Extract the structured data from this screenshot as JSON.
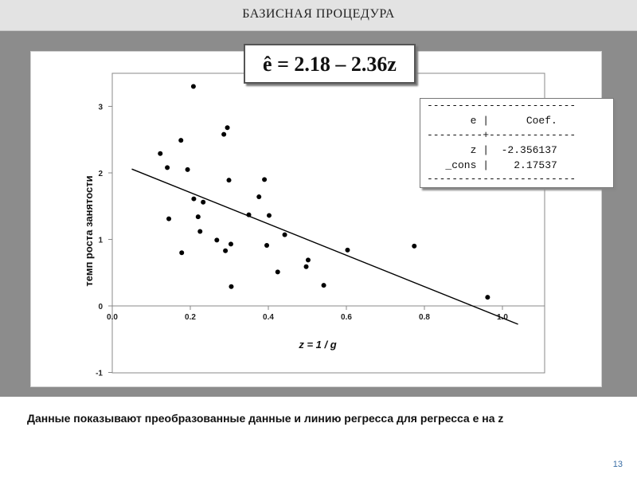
{
  "header": {
    "title": "БАЗИСНАЯ ПРОЦЕДУРА"
  },
  "equation": {
    "text": "ê = 2.18 – 2.36z"
  },
  "regression_table": {
    "lines": [
      "------------------------",
      "       e |      Coef.",
      "---------+--------------",
      "       z |  -2.356137",
      "   _cons |    2.17537",
      "------------------------"
    ]
  },
  "caption": {
    "text": "Данные показывают преобразованные данные и линию регресса для регресса e на z"
  },
  "page": {
    "number": "13"
  },
  "chart_data": {
    "type": "scatter",
    "xlabel": "z = 1 / g",
    "ylabel": "темп роста занятости",
    "xlim": [
      0.0,
      1.1
    ],
    "ylim": [
      -1,
      3.5
    ],
    "x_ticks": [
      0.0,
      0.2,
      0.4,
      0.6,
      0.8,
      1.0
    ],
    "x_tick_labels": [
      "0.0",
      "0.2",
      "0.4",
      "0.6",
      "0.8",
      "1.0"
    ],
    "y_ticks": [
      -1,
      0,
      1,
      2,
      3
    ],
    "y_tick_labels": [
      "-1",
      "0",
      "1",
      "2",
      "3"
    ],
    "grid": false,
    "points": [
      {
        "x": 0.123,
        "y": 2.29
      },
      {
        "x": 0.141,
        "y": 2.08
      },
      {
        "x": 0.145,
        "y": 1.31
      },
      {
        "x": 0.176,
        "y": 2.49
      },
      {
        "x": 0.178,
        "y": 0.8
      },
      {
        "x": 0.193,
        "y": 2.05
      },
      {
        "x": 0.208,
        "y": 3.3
      },
      {
        "x": 0.209,
        "y": 1.61
      },
      {
        "x": 0.22,
        "y": 1.34
      },
      {
        "x": 0.225,
        "y": 1.12
      },
      {
        "x": 0.233,
        "y": 1.56
      },
      {
        "x": 0.268,
        "y": 0.99
      },
      {
        "x": 0.286,
        "y": 2.58
      },
      {
        "x": 0.29,
        "y": 0.83
      },
      {
        "x": 0.295,
        "y": 2.68
      },
      {
        "x": 0.299,
        "y": 1.89
      },
      {
        "x": 0.304,
        "y": 0.93
      },
      {
        "x": 0.305,
        "y": 0.29
      },
      {
        "x": 0.35,
        "y": 1.37
      },
      {
        "x": 0.376,
        "y": 1.64
      },
      {
        "x": 0.39,
        "y": 1.9
      },
      {
        "x": 0.396,
        "y": 0.91
      },
      {
        "x": 0.402,
        "y": 1.36
      },
      {
        "x": 0.424,
        "y": 0.51
      },
      {
        "x": 0.442,
        "y": 1.07
      },
      {
        "x": 0.497,
        "y": 0.59
      },
      {
        "x": 0.502,
        "y": 0.69
      },
      {
        "x": 0.542,
        "y": 0.31
      },
      {
        "x": 0.603,
        "y": 0.84
      },
      {
        "x": 0.774,
        "y": 0.9
      },
      {
        "x": 0.962,
        "y": 0.13
      }
    ],
    "fit_line": {
      "intercept": 2.17537,
      "slope": -2.356137,
      "x_start": 0.05,
      "x_end": 1.04
    }
  }
}
